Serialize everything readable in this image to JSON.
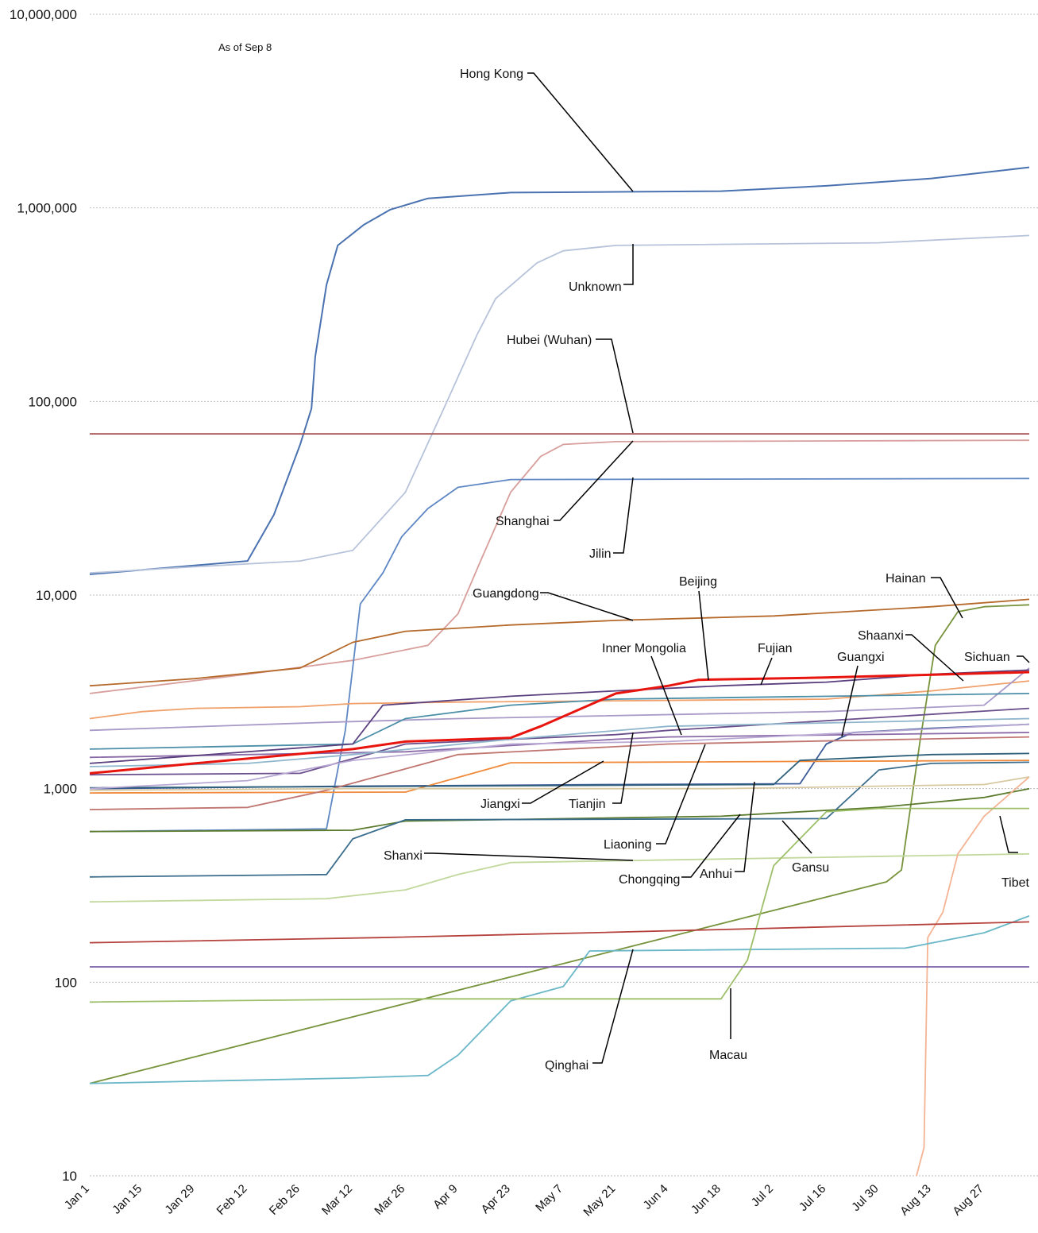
{
  "chart_data": {
    "type": "line",
    "title": "",
    "note": "As of Sep 8",
    "xlabel": "",
    "ylabel": "",
    "y_scale": "log",
    "ylim": [
      10,
      10000000
    ],
    "y_ticks": [
      "10",
      "100",
      "1,000",
      "10,000",
      "100,000",
      "1,000,000",
      "10,000,000"
    ],
    "x_ticks": [
      "Jan 1",
      "Jan 15",
      "Jan 29",
      "Feb 12",
      "Feb 26",
      "Mar 12",
      "Mar 26",
      "Apr 9",
      "Apr 23",
      "May 7",
      "May 21",
      "Jun 4",
      "Jun 18",
      "Jul 2",
      "Jul 16",
      "Jul 30",
      "Aug 13",
      "Aug 27"
    ],
    "x_range": [
      "Jan 1",
      "Sep 8"
    ],
    "grid": "horizontal dotted",
    "legend": "none (direct labels)",
    "series": [
      {
        "name": "Hong Kong",
        "color": "#4a72b0",
        "points": [
          [
            "Jan 1",
            12800
          ],
          [
            "Feb 12",
            15000
          ],
          [
            "Feb 19",
            26000
          ],
          [
            "Feb 26",
            60000
          ],
          [
            "Mar 1",
            92000
          ],
          [
            "Mar 2",
            170000
          ],
          [
            "Mar 5",
            400000
          ],
          [
            "Mar 8",
            640000
          ],
          [
            "Mar 15",
            820000
          ],
          [
            "Mar 22",
            980000
          ],
          [
            "Apr 1",
            1120000
          ],
          [
            "Apr 23",
            1200000
          ],
          [
            "May 21",
            1210000
          ],
          [
            "Jun 18",
            1220000
          ],
          [
            "Jul 16",
            1300000
          ],
          [
            "Aug 13",
            1420000
          ],
          [
            "Sep 8",
            1620000
          ]
        ]
      },
      {
        "name": "Unknown",
        "color": "#b7c3da",
        "points": [
          [
            "Jan 1",
            13000
          ],
          [
            "Jan 29",
            14000
          ],
          [
            "Feb 26",
            15000
          ],
          [
            "Mar 12",
            17000
          ],
          [
            "Mar 26",
            34000
          ],
          [
            "Apr 5",
            90000
          ],
          [
            "Apr 14",
            220000
          ],
          [
            "Apr 19",
            340000
          ],
          [
            "Apr 30",
            520000
          ],
          [
            "May 7",
            600000
          ],
          [
            "May 21",
            640000
          ],
          [
            "Jul 30",
            660000
          ],
          [
            "Sep 8",
            720000
          ]
        ]
      },
      {
        "name": "Hubei (Wuhan)",
        "color": "#a54f4f",
        "points": [
          [
            "Jan 1",
            68000
          ],
          [
            "Sep 8",
            68000
          ]
        ]
      },
      {
        "name": "Shanghai",
        "color": "#d89f9c",
        "points": [
          [
            "Jan 1",
            3100
          ],
          [
            "Feb 12",
            3900
          ],
          [
            "Mar 12",
            4600
          ],
          [
            "Apr 1",
            5500
          ],
          [
            "Apr 9",
            8000
          ],
          [
            "Apr 15",
            15000
          ],
          [
            "Apr 23",
            34000
          ],
          [
            "May 1",
            52000
          ],
          [
            "May 7",
            60000
          ],
          [
            "May 21",
            62000
          ],
          [
            "Sep 8",
            63000
          ]
        ]
      },
      {
        "name": "Jilin",
        "color": "#5f87c4",
        "points": [
          [
            "Jan 1",
            600
          ],
          [
            "Mar 5",
            620
          ],
          [
            "Mar 10",
            2000
          ],
          [
            "Mar 14",
            9000
          ],
          [
            "Mar 20",
            13000
          ],
          [
            "Mar 25",
            20000
          ],
          [
            "Apr 1",
            28000
          ],
          [
            "Apr 9",
            36000
          ],
          [
            "Apr 23",
            39500
          ],
          [
            "Sep 8",
            40000
          ]
        ]
      },
      {
        "name": "Guangdong",
        "color": "#b5692a",
        "points": [
          [
            "Jan 1",
            3400
          ],
          [
            "Jan 29",
            3700
          ],
          [
            "Feb 26",
            4200
          ],
          [
            "Mar 12",
            5700
          ],
          [
            "Mar 26",
            6500
          ],
          [
            "Apr 23",
            7000
          ],
          [
            "May 21",
            7400
          ],
          [
            "Jul 2",
            7800
          ],
          [
            "Aug 13",
            8700
          ],
          [
            "Sep 8",
            9500
          ]
        ]
      },
      {
        "name": "Beijing",
        "color": "#e8150f",
        "points": [
          [
            "Jan 1",
            1200
          ],
          [
            "Jan 29",
            1350
          ],
          [
            "Mar 12",
            1600
          ],
          [
            "Mar 26",
            1750
          ],
          [
            "Apr 23",
            1830
          ],
          [
            "May 1",
            2100
          ],
          [
            "May 21",
            3100
          ],
          [
            "Jun 4",
            3400
          ],
          [
            "Jun 12",
            3650
          ],
          [
            "Jul 16",
            3750
          ],
          [
            "Sep 8",
            4000
          ]
        ]
      },
      {
        "name": "Fujian",
        "color": "#5a3f7e",
        "points": [
          [
            "Jan 1",
            1350
          ],
          [
            "Mar 12",
            1700
          ],
          [
            "Mar 20",
            2700
          ],
          [
            "Apr 23",
            3000
          ],
          [
            "May 21",
            3200
          ],
          [
            "Jun 18",
            3400
          ],
          [
            "Jul 16",
            3550
          ],
          [
            "Aug 13",
            3900
          ],
          [
            "Sep 8",
            4100
          ]
        ]
      },
      {
        "name": "Shaanxi",
        "color": "#f0a06a",
        "points": [
          [
            "Jan 1",
            2300
          ],
          [
            "Jan 15",
            2500
          ],
          [
            "Jan 29",
            2600
          ],
          [
            "Feb 26",
            2650
          ],
          [
            "Mar 12",
            2750
          ],
          [
            "Apr 9",
            2800
          ],
          [
            "Jul 16",
            2900
          ],
          [
            "Aug 13",
            3200
          ],
          [
            "Sep 8",
            3600
          ]
        ]
      },
      {
        "name": "Sichuan",
        "color": "#a99ac8",
        "points": [
          [
            "Jan 1",
            2000
          ],
          [
            "Mar 5",
            2200
          ],
          [
            "Apr 9",
            2300
          ],
          [
            "Jul 16",
            2500
          ],
          [
            "Aug 27",
            2700
          ],
          [
            "Sep 8",
            4200
          ]
        ]
      },
      {
        "name": "Hainan",
        "color": "#77933c",
        "points": [
          [
            "Jan 1",
            30
          ],
          [
            "Aug 1",
            330
          ],
          [
            "Aug 5",
            380
          ],
          [
            "Aug 10",
            1800
          ],
          [
            "Aug 14",
            5500
          ],
          [
            "Aug 20",
            8200
          ],
          [
            "Aug 27",
            8700
          ],
          [
            "Sep 8",
            8900
          ]
        ]
      },
      {
        "name": "Guangxi",
        "color": "#3d5a99",
        "points": [
          [
            "Jan 1",
            1000
          ],
          [
            "Mar 12",
            1030
          ],
          [
            "May 21",
            1050
          ],
          [
            "Jul 9",
            1060
          ],
          [
            "Jul 16",
            1700
          ],
          [
            "Jul 23",
            1950
          ],
          [
            "Aug 13",
            2050
          ],
          [
            "Sep 8",
            2150
          ]
        ]
      },
      {
        "name": "Inner Mongolia",
        "color": "#6a4f8c",
        "points": [
          [
            "Jan 1",
            1180
          ],
          [
            "Feb 26",
            1200
          ],
          [
            "Mar 26",
            1700
          ],
          [
            "May 21",
            1900
          ],
          [
            "Jun 4",
            2000
          ],
          [
            "Sep 8",
            2600
          ]
        ]
      },
      {
        "name": "Jiangxi",
        "color": "#f08a3a",
        "points": [
          [
            "Jan 1",
            950
          ],
          [
            "Mar 26",
            960
          ],
          [
            "Apr 23",
            1360
          ],
          [
            "Sep 8",
            1400
          ]
        ]
      },
      {
        "name": "Tianjin",
        "color": "#4c8fa8",
        "points": [
          [
            "Jan 1",
            1600
          ],
          [
            "Mar 12",
            1700
          ],
          [
            "Mar 26",
            2300
          ],
          [
            "Apr 23",
            2700
          ],
          [
            "May 21",
            2900
          ],
          [
            "Sep 8",
            3100
          ]
        ]
      },
      {
        "name": "Liaoning",
        "color": "#8b6aa8",
        "points": [
          [
            "Jan 1",
            1450
          ],
          [
            "Mar 26",
            1550
          ],
          [
            "May 21",
            1800
          ],
          [
            "Jun 4",
            1850
          ],
          [
            "Sep 8",
            1950
          ]
        ]
      },
      {
        "name": "Shanxi",
        "color": "#c2d89c",
        "points": [
          [
            "Jan 1",
            260
          ],
          [
            "Mar 5",
            270
          ],
          [
            "Mar 26",
            300
          ],
          [
            "Apr 9",
            360
          ],
          [
            "Apr 23",
            415
          ],
          [
            "Sep 8",
            460
          ]
        ]
      },
      {
        "name": "Chongqing",
        "color": "#5a7a2c",
        "points": [
          [
            "Jan 1",
            600
          ],
          [
            "Mar 12",
            610
          ],
          [
            "Mar 26",
            680
          ],
          [
            "Jun 18",
            720
          ],
          [
            "Jul 30",
            800
          ],
          [
            "Aug 27",
            900
          ],
          [
            "Sep 8",
            1000
          ]
        ]
      },
      {
        "name": "Anhui",
        "color": "#3a6d8c",
        "points": [
          [
            "Jan 1",
            350
          ],
          [
            "Mar 5",
            360
          ],
          [
            "Mar 12",
            550
          ],
          [
            "Mar 26",
            690
          ],
          [
            "Jul 16",
            700
          ],
          [
            "Jul 30",
            1250
          ],
          [
            "Aug 13",
            1350
          ],
          [
            "Sep 8",
            1370
          ]
        ]
      },
      {
        "name": "Gansu",
        "color": "#2e5f7a",
        "points": [
          [
            "Jan 1",
            1010
          ],
          [
            "Jul 2",
            1050
          ],
          [
            "Jul 9",
            1400
          ],
          [
            "Aug 13",
            1500
          ],
          [
            "Sep 8",
            1520
          ]
        ]
      },
      {
        "name": "Tibet",
        "color": "#f4b493",
        "points": [
          [
            "Aug 9",
            10
          ],
          [
            "Aug 11",
            14
          ],
          [
            "Aug 12",
            170
          ],
          [
            "Aug 16",
            230
          ],
          [
            "Aug 20",
            460
          ],
          [
            "Aug 27",
            720
          ],
          [
            "Sep 8",
            1150
          ]
        ]
      },
      {
        "name": "Qinghai",
        "color": "#6ab7c8",
        "points": [
          [
            "Jan 1",
            30
          ],
          [
            "Mar 12",
            32
          ],
          [
            "Apr 1",
            33
          ],
          [
            "Apr 9",
            42
          ],
          [
            "Apr 23",
            80
          ],
          [
            "May 7",
            95
          ],
          [
            "May 14",
            145
          ],
          [
            "Aug 6",
            150
          ],
          [
            "Aug 27",
            180
          ],
          [
            "Sep 8",
            220
          ]
        ]
      },
      {
        "name": "Macau",
        "color": "#9dbf6a",
        "points": [
          [
            "Jan 1",
            79
          ],
          [
            "Mar 26",
            82
          ],
          [
            "Jun 18",
            82
          ],
          [
            "Jun 25",
            130
          ],
          [
            "Jul 2",
            400
          ],
          [
            "Jul 16",
            760
          ],
          [
            "Jul 30",
            790
          ],
          [
            "Sep 8",
            790
          ]
        ]
      },
      {
        "name": "",
        "color": "#b5413d",
        "points": [
          [
            "Jan 1",
            160
          ],
          [
            "Mar 19",
            170
          ],
          [
            "May 14",
            180
          ],
          [
            "Sep 8",
            205
          ]
        ]
      },
      {
        "name": "",
        "color": "#7a5fa8",
        "points": [
          [
            "Jan 1",
            120
          ],
          [
            "Sep 8",
            120
          ]
        ]
      },
      {
        "name": "",
        "color": "#c07570",
        "points": [
          [
            "Jan 1",
            780
          ],
          [
            "Feb 12",
            800
          ],
          [
            "Mar 5",
            980
          ],
          [
            "Apr 9",
            1500
          ],
          [
            "Jun 4",
            1700
          ],
          [
            "Sep 8",
            1850
          ]
        ]
      },
      {
        "name": "",
        "color": "#b8a8d4",
        "points": [
          [
            "Jan 1",
            1000
          ],
          [
            "Feb 12",
            1100
          ],
          [
            "Mar 12",
            1400
          ],
          [
            "Apr 23",
            1700
          ],
          [
            "Jun 4",
            1750
          ],
          [
            "Sep 8",
            2150
          ]
        ]
      },
      {
        "name": "",
        "color": "#d8c8a0",
        "points": [
          [
            "Jan 1",
            980
          ],
          [
            "Mar 12",
            1000
          ],
          [
            "Jun 18",
            1000
          ],
          [
            "Aug 27",
            1050
          ],
          [
            "Sep 8",
            1150
          ]
        ]
      },
      {
        "name": "",
        "color": "#8fb6cd",
        "points": [
          [
            "Jan 1",
            1300
          ],
          [
            "Feb 12",
            1350
          ],
          [
            "Mar 12",
            1500
          ],
          [
            "Apr 23",
            1800
          ],
          [
            "Jun 4",
            2100
          ],
          [
            "Sep 8",
            2300
          ]
        ]
      }
    ],
    "annotations": [
      {
        "text": "Hong Kong",
        "at": [
          "May 21",
          1210000
        ]
      },
      {
        "text": "Unknown",
        "at": [
          "May 21",
          640000
        ]
      },
      {
        "text": "Hubei (Wuhan)",
        "at": [
          "May 21",
          68000
        ]
      },
      {
        "text": "Shanghai",
        "at": [
          "May 21",
          62000
        ]
      },
      {
        "text": "Jilin",
        "at": [
          "May 21",
          40000
        ]
      },
      {
        "text": "Guangdong",
        "at": [
          "May 21",
          7400
        ]
      },
      {
        "text": "Beijing",
        "at": [
          "Jun 11",
          3650
        ]
      },
      {
        "text": "Inner Mongolia",
        "at": [
          "Jun 4",
          1950
        ]
      },
      {
        "text": "Fujian",
        "at": [
          "Jun 21",
          3400
        ]
      },
      {
        "text": "Guangxi",
        "at": [
          "Jul 15",
          1950
        ]
      },
      {
        "text": "Shaanxi",
        "at": [
          "Aug 20",
          3600
        ]
      },
      {
        "text": "Hainan",
        "at": [
          "Aug 22",
          7600
        ]
      },
      {
        "text": "Sichuan",
        "at": [
          "Sep 7",
          4200
        ]
      },
      {
        "text": "Jiangxi",
        "at": [
          "May 21",
          1360
        ]
      },
      {
        "text": "Tianjin",
        "at": [
          "May 21",
          1950
        ]
      },
      {
        "text": "Liaoning",
        "at": [
          "Jun 10",
          1850
        ]
      },
      {
        "text": "Shanxi",
        "at": [
          "May 21",
          415
        ]
      },
      {
        "text": "Chongqing",
        "at": [
          "Jun 22",
          720
        ]
      },
      {
        "text": "Anhui",
        "at": [
          "Jun 28",
          1060
        ]
      },
      {
        "text": "Gansu",
        "at": [
          "Jul 3",
          700
        ]
      },
      {
        "text": "Tibet",
        "at": [
          "Aug 22",
          700
        ]
      },
      {
        "text": "Qinghai",
        "at": [
          "May 21",
          148
        ]
      },
      {
        "text": "Macau",
        "at": [
          "Jun 21",
          92
        ]
      }
    ]
  }
}
